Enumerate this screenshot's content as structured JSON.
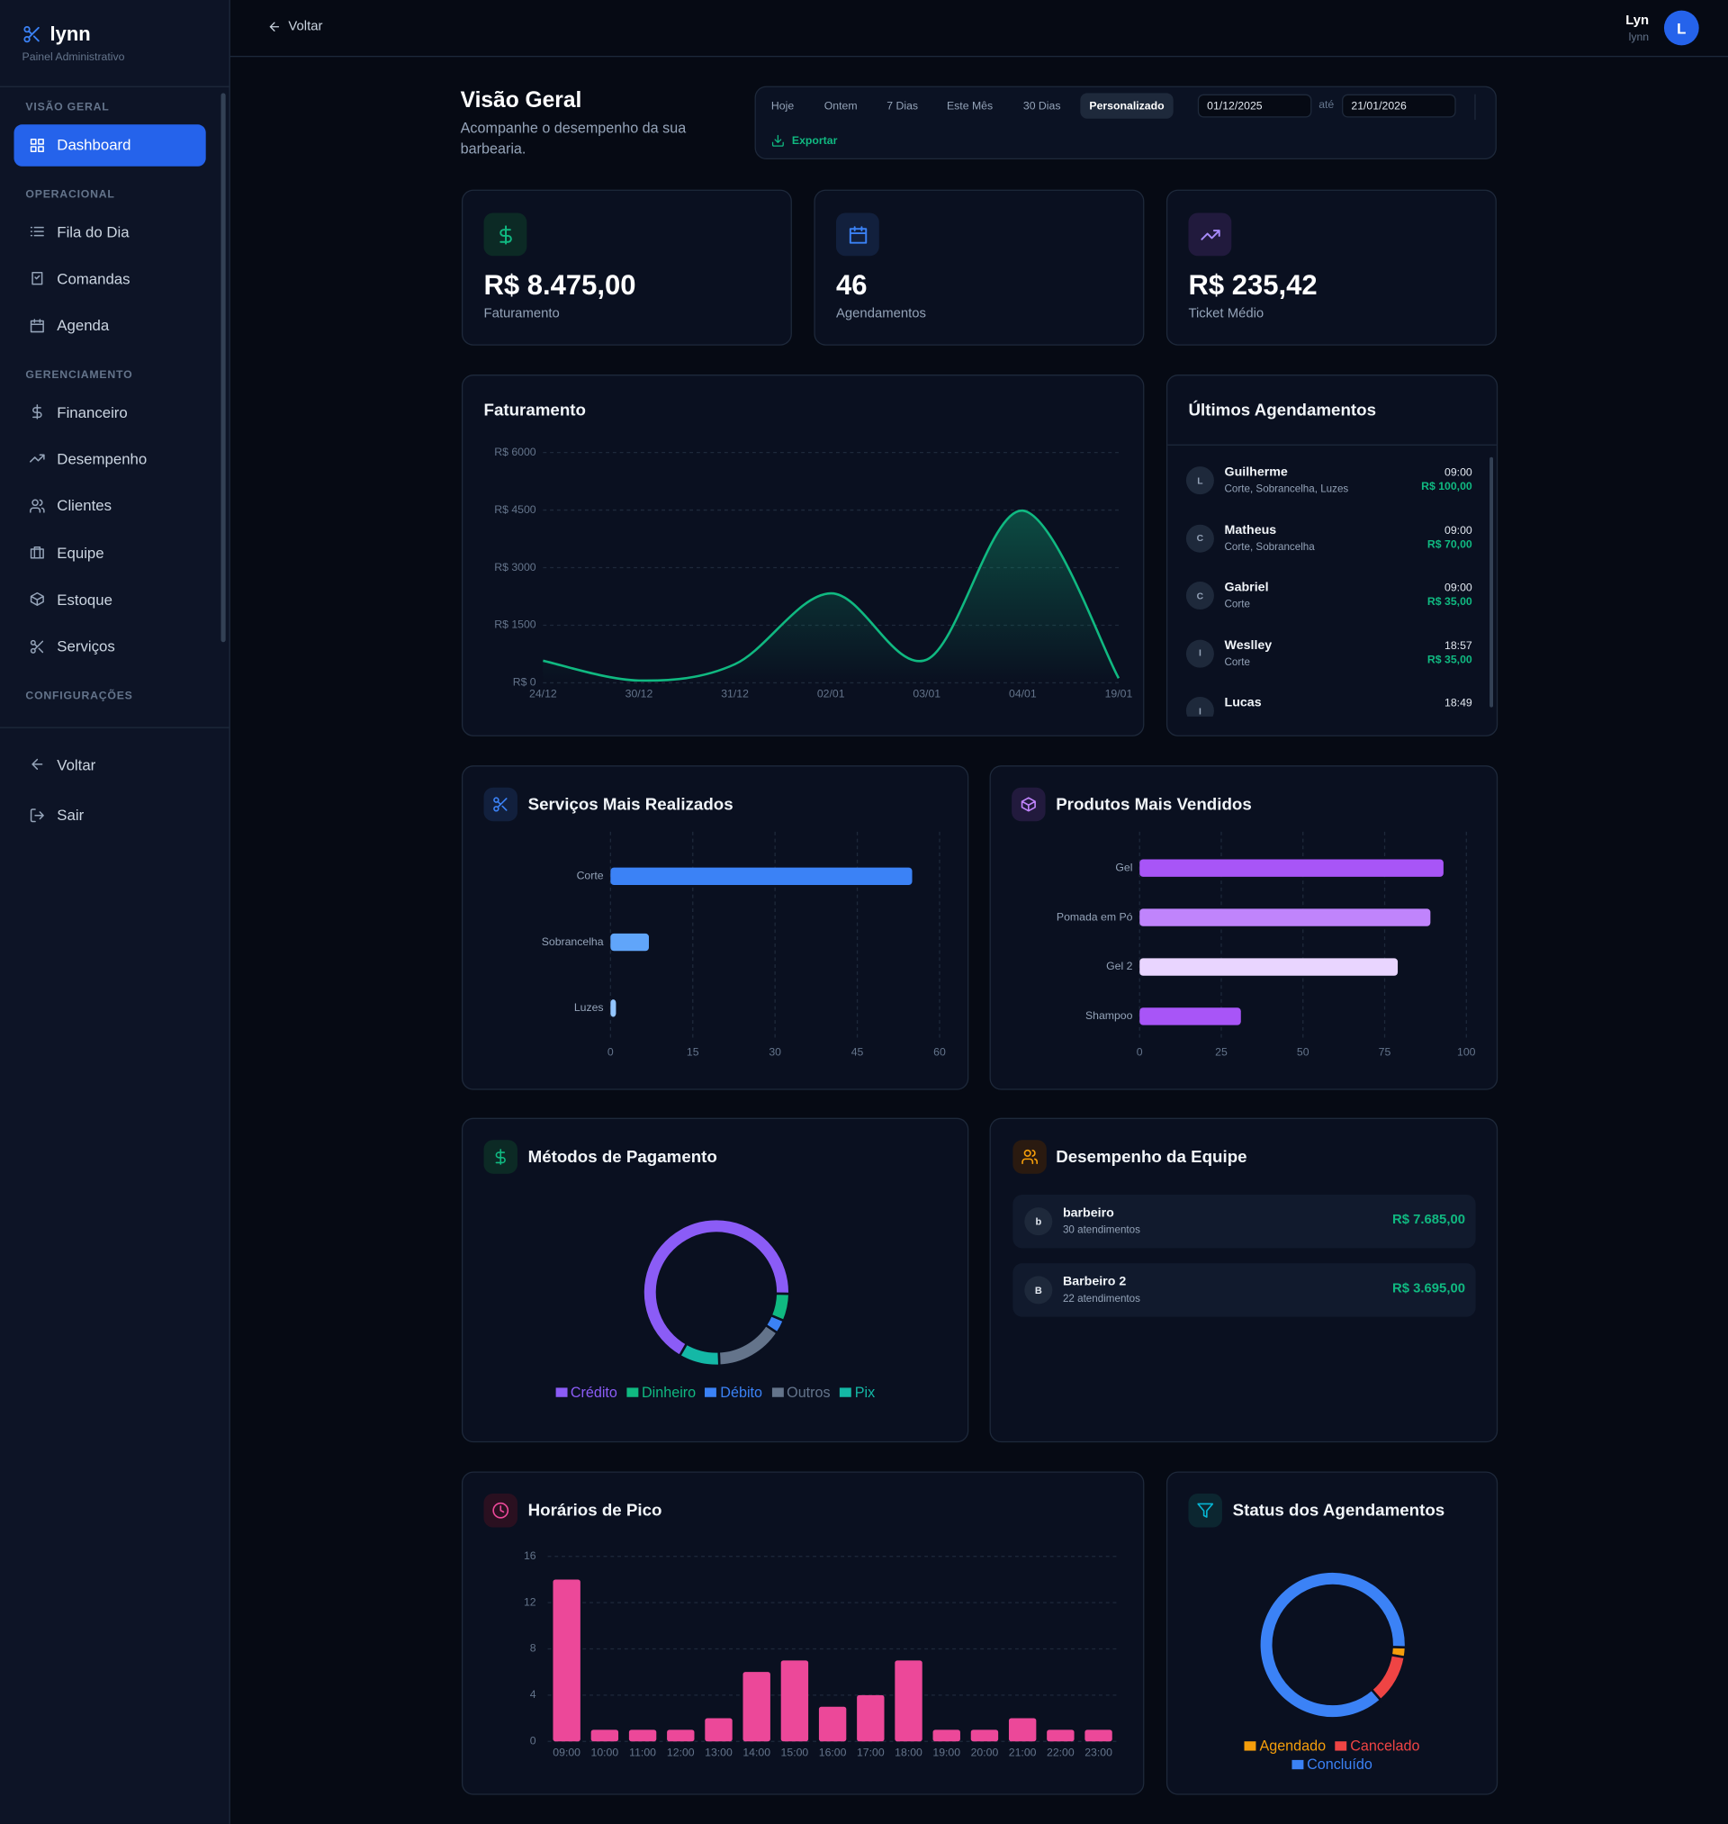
{
  "sidebar": {
    "brand": "lynn",
    "subtitle": "Painel Administrativo",
    "sections": [
      {
        "title": "VISÃO GERAL",
        "items": [
          "Dashboard"
        ]
      },
      {
        "title": "OPERACIONAL",
        "items": [
          "Fila do Dia",
          "Comandas",
          "Agenda"
        ]
      },
      {
        "title": "GERENCIAMENTO",
        "items": [
          "Financeiro",
          "Desempenho",
          "Clientes",
          "Equipe",
          "Estoque",
          "Serviços"
        ]
      },
      {
        "title": "CONFIGURAÇÕES"
      }
    ],
    "footer": [
      "Voltar",
      "Sair"
    ]
  },
  "topbar": {
    "back": "Voltar",
    "user_name": "Lyn",
    "user_login": "lynn",
    "avatar": "L"
  },
  "overview": {
    "title": "Visão Geral",
    "subtitle": "Acompanhe o desempenho da sua barbearia.",
    "periods": [
      "Hoje",
      "Ontem",
      "7 Dias",
      "Este Mês",
      "30 Dias",
      "Personalizado"
    ],
    "date_from": "01/12/2025",
    "date_separator": "até",
    "date_to": "21/01/2026",
    "export": "Exportar"
  },
  "kpis": [
    {
      "value": "R$ 8.475,00",
      "label": "Faturamento"
    },
    {
      "value": "46",
      "label": "Agendamentos"
    },
    {
      "value": "R$ 235,42",
      "label": "Ticket Médio"
    }
  ],
  "recent": {
    "title": "Últimos Agendamentos",
    "items": [
      {
        "avatar": "L",
        "name": "Guilherme",
        "services": "Corte, Sobrancelha, Luzes",
        "time": "09:00",
        "price": "R$ 100,00"
      },
      {
        "avatar": "C",
        "name": "Matheus",
        "services": "Corte, Sobrancelha",
        "time": "09:00",
        "price": "R$ 70,00"
      },
      {
        "avatar": "C",
        "name": "Gabriel",
        "services": "Corte",
        "time": "09:00",
        "price": "R$ 35,00"
      },
      {
        "avatar": "I",
        "name": "Weslley",
        "services": "Corte",
        "time": "18:57",
        "price": "R$ 35,00"
      },
      {
        "avatar": "I",
        "name": "Lucas",
        "time": "18:49"
      }
    ]
  },
  "team": {
    "title": "Desempenho da Equipe",
    "members": [
      {
        "avatar": "b",
        "name": "barbeiro",
        "appointments": "30 atendimentos",
        "revenue": "R$ 7.685,00"
      },
      {
        "avatar": "B",
        "name": "Barbeiro 2",
        "appointments": "22 atendimentos",
        "revenue": "R$ 3.695,00"
      }
    ]
  },
  "chart_data": [
    {
      "type": "line",
      "title": "Faturamento",
      "x": [
        "24/12",
        "30/12",
        "31/12",
        "02/01",
        "03/01",
        "04/01",
        "19/01"
      ],
      "values": [
        575,
        60,
        485,
        2330,
        605,
        4485,
        120
      ],
      "color": "#10b981",
      "ylim": [
        0,
        6000
      ],
      "yticks": [
        {
          "value": 0,
          "label": "R$ 0"
        },
        {
          "value": 1500,
          "label": "R$ 1500"
        },
        {
          "value": 3000,
          "label": "R$ 3000"
        },
        {
          "value": 4500,
          "label": "R$ 4500"
        },
        {
          "value": 6000,
          "label": "R$ 6000"
        }
      ],
      "grid": true
    },
    {
      "type": "bar",
      "horizontal": true,
      "title": "Serviços Mais Realizados",
      "categories": [
        "Corte",
        "Sobrancelha",
        "Luzes"
      ],
      "values": [
        55,
        7,
        1
      ],
      "colors": [
        "#3b82f6",
        "#60a5fa",
        "#93c5fd"
      ],
      "xlim": [
        0,
        60
      ],
      "xticks": [
        0,
        15,
        30,
        45,
        60
      ],
      "grid": true
    },
    {
      "type": "bar",
      "horizontal": true,
      "title": "Produtos Mais Vendidos",
      "categories": [
        "Gel",
        "Pomada em Pó",
        "Gel 2",
        "Shampoo"
      ],
      "values": [
        93,
        89,
        79,
        31
      ],
      "colors": [
        "#a855f7",
        "#c084fc",
        "#e9d5ff",
        "#a855f7"
      ],
      "xlim": [
        0,
        100
      ],
      "xticks": [
        0,
        25,
        50,
        75,
        100
      ],
      "grid": true
    },
    {
      "type": "doughnut",
      "title": "Métodos de Pagamento",
      "categories": [
        "Crédito",
        "Dinheiro",
        "Débito",
        "Outros",
        "Pix"
      ],
      "values": [
        67,
        6,
        3,
        15,
        9
      ],
      "colors": [
        "#8b5cf6",
        "#10b981",
        "#3b82f6",
        "#64748b",
        "#14b8a6"
      ],
      "legend": "bottom"
    },
    {
      "type": "bar",
      "title": "Horários de Pico",
      "categories": [
        "09:00",
        "10:00",
        "11:00",
        "12:00",
        "13:00",
        "14:00",
        "15:00",
        "16:00",
        "17:00",
        "18:00",
        "19:00",
        "20:00",
        "21:00",
        "22:00",
        "23:00"
      ],
      "values": [
        14,
        1,
        1,
        1,
        2,
        6,
        7,
        3,
        4,
        7,
        1,
        1,
        2,
        1,
        1
      ],
      "color": "#ec4899",
      "ylim": [
        0,
        16
      ],
      "yticks": [
        0,
        4,
        8,
        12,
        16
      ],
      "grid": true
    },
    {
      "type": "doughnut",
      "title": "Status dos Agendamentos",
      "categories": [
        "Agendado",
        "Cancelado",
        "Concluído"
      ],
      "values": [
        1,
        5,
        40
      ],
      "colors": [
        "#f59e0b",
        "#ef4444",
        "#3b82f6"
      ],
      "legend": "bottom"
    }
  ]
}
